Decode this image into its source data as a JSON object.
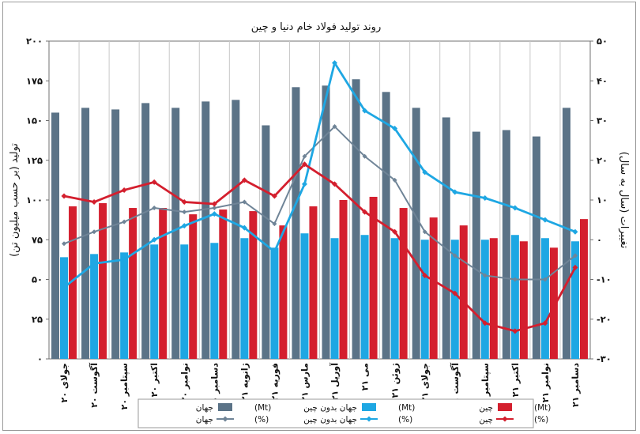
{
  "chart_data": {
    "type": "bar",
    "title": "روند تولید فولاد خام دنیا و چین",
    "ylabel_left": "تولید (بر حسب میلیون تن)",
    "ylabel_right": "تغییرات (سال به سال)",
    "ylim_left": [
      0,
      200
    ],
    "ylim_right": [
      -30,
      50
    ],
    "yticks_left": [
      "۰",
      "۲۵",
      "۵۰",
      "۷۵",
      "۱۰۰",
      "۱۲۵",
      "۱۵۰",
      "۱۷۵",
      "۲۰۰"
    ],
    "yticks_right": [
      "-۳۰",
      "-۲۰",
      "-۱۰",
      "۰",
      "۱۰",
      "۲۰",
      "۳۰",
      "۴۰",
      "۵۰"
    ],
    "grid": "vertical",
    "categories": [
      "۲۰ جولای",
      "۲۰ آگوست",
      "۲۰ سپتامبر",
      "۲۰ اکتبر",
      "۲۰ نوامبر",
      "۲۰ دسامبر",
      "۲۱ ژانویه",
      "۲۱ فوریه",
      "۲۱ مارس",
      "۲۱ آوریل",
      "۲۱ می",
      "۲۱ ژوئن",
      "۲۱ جولای",
      "۲۱ آگوست",
      "۲۱ سپتامبر",
      "۲۱ اکتبر",
      "۲۱ نوامبر",
      "۲۱ دسامبر"
    ],
    "series": [
      {
        "name": "جهان (Mt)",
        "kind": "bar",
        "axis": "left",
        "color": "#5b7387",
        "values": [
          155,
          158,
          157,
          161,
          158,
          162,
          163,
          147,
          171,
          172,
          176,
          168,
          158,
          152,
          143,
          144,
          140,
          158
        ]
      },
      {
        "name": "جهان بدون چین (Mt)",
        "kind": "bar",
        "axis": "left",
        "color": "#1ea7e3",
        "values": [
          64,
          66,
          67,
          72,
          72,
          73,
          76,
          70,
          79,
          76,
          78,
          76,
          75,
          75,
          75,
          78,
          76,
          74
        ]
      },
      {
        "name": "چین (Mt)",
        "kind": "bar",
        "axis": "left",
        "color": "#d41f2e",
        "values": [
          96,
          98,
          95,
          95,
          91,
          94,
          93,
          84,
          96,
          100,
          102,
          95,
          89,
          84,
          76,
          74,
          70,
          88
        ]
      },
      {
        "name": "جهان (%)",
        "kind": "line",
        "axis": "right",
        "color": "#6f8497",
        "values": [
          -1,
          2,
          4.5,
          8,
          7,
          8,
          9.5,
          4,
          21,
          28.5,
          21,
          15,
          2,
          -4,
          -9,
          -10,
          -10,
          -4
        ]
      },
      {
        "name": "جهان بدون چین (%)",
        "kind": "line",
        "axis": "right",
        "color": "#1ea7e3",
        "values": [
          -12,
          -6,
          -5,
          0,
          3.5,
          6.5,
          3,
          -3,
          14,
          44.5,
          32.5,
          28,
          17,
          12,
          10.5,
          8,
          5,
          2
        ]
      },
      {
        "name": "چین (%)",
        "kind": "line",
        "axis": "right",
        "color": "#d41f2e",
        "values": [
          11,
          9.5,
          12.5,
          14.5,
          9.5,
          9,
          15,
          11,
          19,
          14,
          7,
          2,
          -9,
          -13.5,
          -21,
          -23,
          -21,
          -7
        ]
      }
    ],
    "legend": {
      "position": "bottom",
      "rows": [
        [
          {
            "series": 0,
            "label": "جهان",
            "unit": "(Mt)"
          },
          {
            "series": 1,
            "label": "جهان بدون چین",
            "unit": "(Mt)"
          },
          {
            "series": 2,
            "label": "چین",
            "unit": "(Mt)"
          }
        ],
        [
          {
            "series": 3,
            "label": "جهان",
            "unit": "(%)"
          },
          {
            "series": 4,
            "label": "جهان بدون چین",
            "unit": "(%)"
          },
          {
            "series": 5,
            "label": "چین",
            "unit": "(%)"
          }
        ]
      ]
    }
  }
}
